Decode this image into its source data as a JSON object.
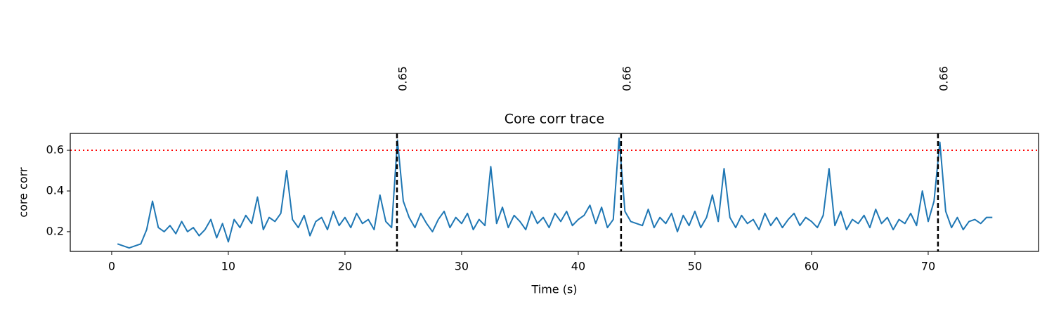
{
  "chart_data": {
    "type": "line",
    "title": "Core corr trace",
    "x_label": "Time (s)",
    "y_label": "core corr",
    "x": [
      0.5,
      1,
      1.5,
      2,
      2.5,
      3,
      3.5,
      4,
      4.5,
      5,
      5.5,
      6,
      6.5,
      7,
      7.5,
      8,
      8.5,
      9,
      9.5,
      10,
      10.5,
      11,
      11.5,
      12,
      12.5,
      13,
      13.5,
      14,
      14.5,
      15,
      15.5,
      16,
      16.5,
      17,
      17.5,
      18,
      18.5,
      19,
      19.5,
      20,
      20.5,
      21,
      21.5,
      22,
      22.5,
      23,
      23.5,
      24,
      24.5,
      25,
      25.5,
      26,
      26.5,
      27,
      27.5,
      28,
      28.5,
      29,
      29.5,
      30,
      30.5,
      31,
      31.5,
      32,
      32.5,
      33,
      33.5,
      34,
      34.5,
      35,
      35.5,
      36,
      36.5,
      37,
      37.5,
      38,
      38.5,
      39,
      39.5,
      40,
      40.5,
      41,
      41.5,
      42,
      42.5,
      43,
      43.5,
      44,
      44.5,
      45,
      45.5,
      46,
      46.5,
      47,
      47.5,
      48,
      48.5,
      49,
      49.5,
      50,
      50.5,
      51,
      51.5,
      52,
      52.5,
      53,
      53.5,
      54,
      54.5,
      55,
      55.5,
      56,
      56.5,
      57,
      57.5,
      58,
      58.5,
      59,
      59.5,
      60,
      60.5,
      61,
      61.5,
      62,
      62.5,
      63,
      63.5,
      64,
      64.5,
      65,
      65.5,
      66,
      66.5,
      67,
      67.5,
      68,
      68.5,
      69,
      69.5,
      70,
      70.5,
      71,
      71.5,
      72,
      72.5,
      73,
      73.5,
      74,
      74.5,
      75,
      75.5
    ],
    "series": [
      {
        "name": "core corr",
        "color": "#1f77b4",
        "values": [
          0.14,
          0.13,
          0.12,
          0.13,
          0.14,
          0.21,
          0.35,
          0.22,
          0.2,
          0.23,
          0.19,
          0.25,
          0.2,
          0.22,
          0.18,
          0.21,
          0.26,
          0.17,
          0.24,
          0.15,
          0.26,
          0.22,
          0.28,
          0.24,
          0.37,
          0.21,
          0.27,
          0.25,
          0.29,
          0.5,
          0.26,
          0.22,
          0.28,
          0.18,
          0.25,
          0.27,
          0.21,
          0.3,
          0.23,
          0.27,
          0.22,
          0.29,
          0.24,
          0.26,
          0.21,
          0.38,
          0.25,
          0.22,
          0.65,
          0.35,
          0.27,
          0.22,
          0.29,
          0.24,
          0.2,
          0.26,
          0.3,
          0.22,
          0.27,
          0.24,
          0.29,
          0.21,
          0.26,
          0.23,
          0.52,
          0.24,
          0.32,
          0.22,
          0.28,
          0.25,
          0.21,
          0.3,
          0.24,
          0.27,
          0.22,
          0.29,
          0.25,
          0.3,
          0.23,
          0.26,
          0.28,
          0.33,
          0.24,
          0.32,
          0.22,
          0.26,
          0.66,
          0.3,
          0.25,
          0.24,
          0.23,
          0.31,
          0.22,
          0.27,
          0.24,
          0.29,
          0.2,
          0.28,
          0.23,
          0.3,
          0.22,
          0.27,
          0.38,
          0.25,
          0.51,
          0.27,
          0.22,
          0.28,
          0.24,
          0.26,
          0.21,
          0.29,
          0.23,
          0.27,
          0.22,
          0.26,
          0.29,
          0.23,
          0.27,
          0.25,
          0.22,
          0.28,
          0.51,
          0.23,
          0.3,
          0.21,
          0.26,
          0.24,
          0.28,
          0.22,
          0.31,
          0.24,
          0.27,
          0.21,
          0.26,
          0.24,
          0.29,
          0.23,
          0.4,
          0.25,
          0.35,
          0.64,
          0.3,
          0.22,
          0.27,
          0.21,
          0.25,
          0.26,
          0.24,
          0.27,
          0.27
        ]
      }
    ],
    "threshold": 0.6,
    "threshold_color": "#ff0000",
    "vlines": [
      24.46,
      43.67,
      70.84
    ],
    "vline_labels": [
      "0.65",
      "0.66",
      "0.66"
    ],
    "vline_color": "#000000",
    "xlim": [
      -3.55,
      79.46
    ],
    "ylim": [
      0.103,
      0.683
    ],
    "xticks": [
      0,
      10,
      20,
      30,
      40,
      50,
      60,
      70
    ],
    "yticks": [
      0.2,
      0.4,
      0.6
    ]
  }
}
